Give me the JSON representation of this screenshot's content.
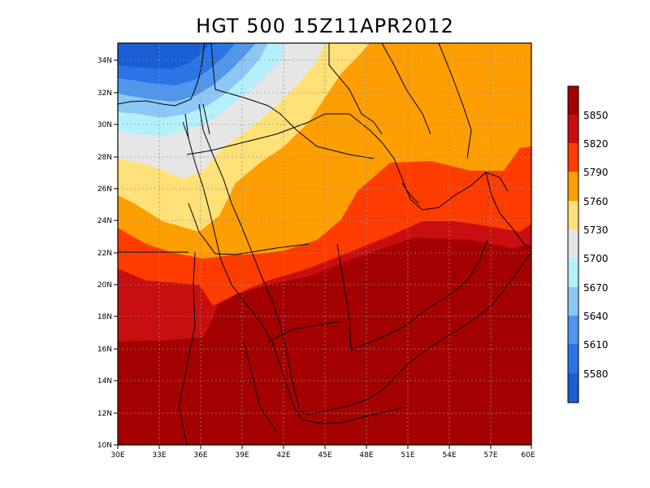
{
  "title": "HGT 500  15Z11APR2012",
  "map": {
    "lat_labels": [
      "34N",
      "32N",
      "30N",
      "28N",
      "26N",
      "24N",
      "22N",
      "20N",
      "18N",
      "16N",
      "14N",
      "12N",
      "10N"
    ],
    "lon_labels": [
      "30E",
      "33E",
      "36E",
      "39E",
      "42E",
      "45E",
      "48E",
      "51E",
      "54E",
      "57E",
      "60E"
    ]
  },
  "colorbar": {
    "labels": [
      "5850",
      "5820",
      "5790",
      "5760",
      "5730",
      "5700",
      "5670",
      "5640",
      "5610",
      "5580"
    ],
    "colors": [
      "#a50000",
      "#c80e0e",
      "#ff3c00",
      "#ff9e00",
      "#ffe178",
      "#e6e6e6",
      "#b4f0fa",
      "#8cc8f5",
      "#5096eb",
      "#2a74e6",
      "#1a5ed6"
    ]
  }
}
